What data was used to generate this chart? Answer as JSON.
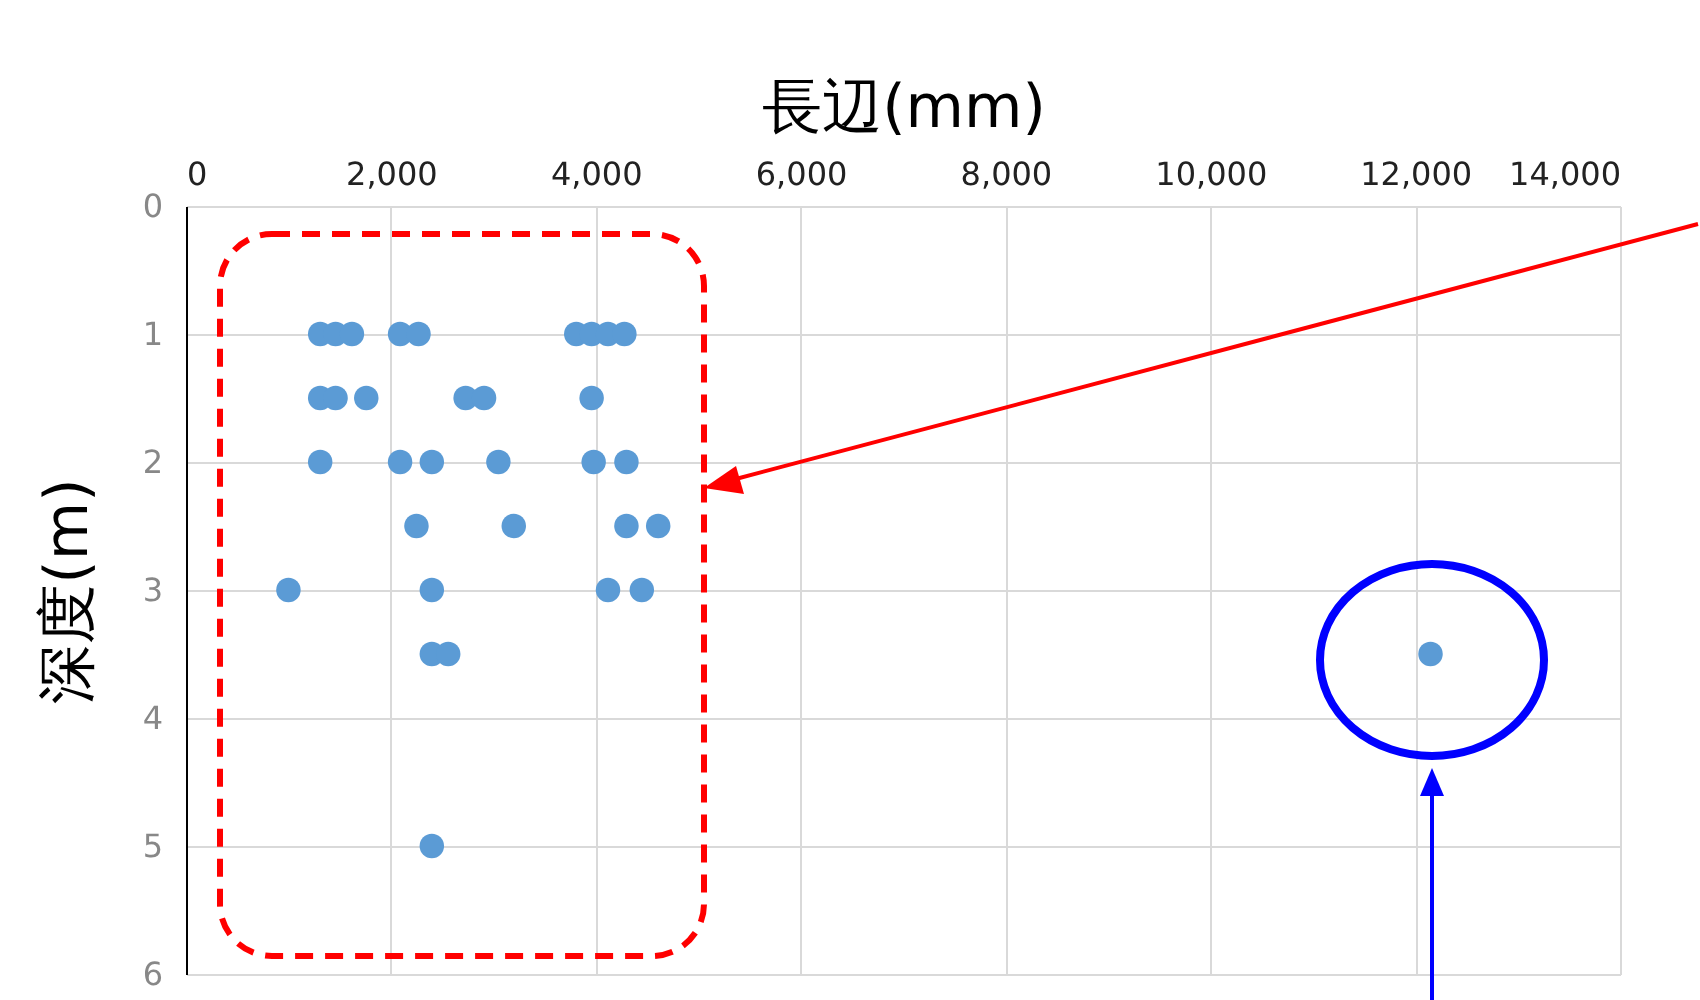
{
  "chart_data": {
    "type": "scatter",
    "xlabel": "長辺(mm)",
    "ylabel": "深度(m)",
    "x": [
      1310,
      1460,
      1620,
      2090,
      2270,
      3810,
      3960,
      4120,
      4280,
      1310,
      1460,
      1760,
      2730,
      2910,
      3960,
      1310,
      2090,
      2400,
      3050,
      3980,
      4300,
      2250,
      3200,
      4300,
      4610,
      1000,
      2400,
      4120,
      4450,
      2400,
      2560,
      2400,
      12150
    ],
    "series": [
      {
        "color": "#5b9bd5",
        "values": [
          1,
          1,
          1,
          1,
          1,
          1,
          1,
          1,
          1,
          1.5,
          1.5,
          1.5,
          1.5,
          1.5,
          1.5,
          2,
          2,
          2,
          2,
          2,
          2,
          2.5,
          2.5,
          2.5,
          2.5,
          3,
          3,
          3,
          3,
          3.5,
          3.5,
          5,
          3.5
        ]
      }
    ],
    "xlim": [
      0,
      14000
    ],
    "xticks": [
      {
        "value": 0,
        "label": "0"
      },
      {
        "value": 2000,
        "label": "2,000"
      },
      {
        "value": 4000,
        "label": "4,000"
      },
      {
        "value": 6000,
        "label": "6,000"
      },
      {
        "value": 8000,
        "label": "8,000"
      },
      {
        "value": 10000,
        "label": "10,000"
      },
      {
        "value": 12000,
        "label": "12,000"
      },
      {
        "value": 14000,
        "label": "14,000"
      }
    ],
    "ylim": [
      6,
      0
    ],
    "yticks": [
      0,
      1,
      2,
      3,
      4,
      5,
      6
    ],
    "grid": true,
    "marker": "circle"
  }
}
